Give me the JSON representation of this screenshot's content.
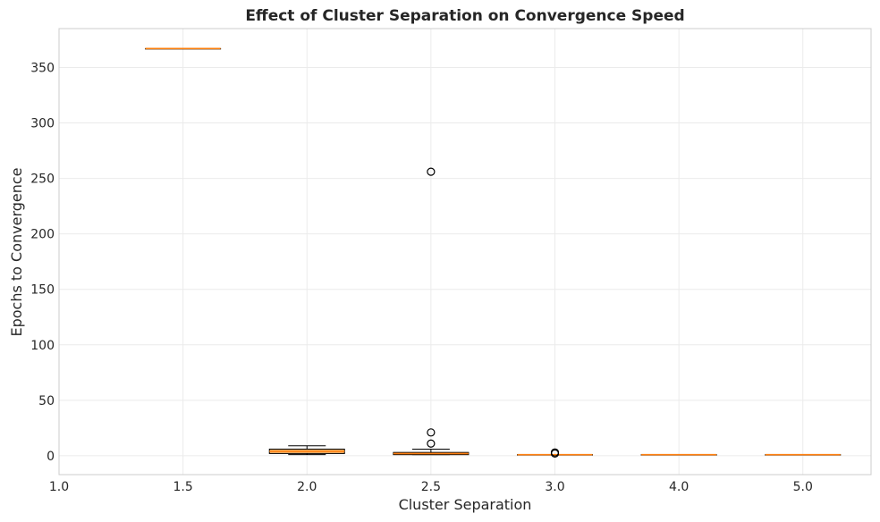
{
  "chart_data": {
    "type": "box",
    "title": "Effect of Cluster Separation on Convergence Speed",
    "xlabel": "Cluster Separation",
    "ylabel": "Epochs to Convergence",
    "x_tick_labels": [
      "1.0",
      "1.5",
      "2.0",
      "2.5",
      "3.0",
      "4.0",
      "5.0"
    ],
    "y_ticks": [
      0,
      50,
      100,
      150,
      200,
      250,
      300,
      350
    ],
    "ylim": [
      -17,
      385
    ],
    "grid": true,
    "colors": {
      "box_fill": "#f5a54a",
      "median": "#ff7f0e",
      "whisker": "#000000",
      "outlier": "#000000"
    },
    "boxes": [
      {
        "label": "1.5",
        "whisker_low": 367,
        "q1": 367,
        "median": 367,
        "q3": 367,
        "whisker_high": 367,
        "outliers": []
      },
      {
        "label": "2.0",
        "whisker_low": 1,
        "q1": 2,
        "median": 4,
        "q3": 6,
        "whisker_high": 9,
        "outliers": []
      },
      {
        "label": "2.5",
        "whisker_low": 1,
        "q1": 1,
        "median": 2,
        "q3": 3,
        "whisker_high": 6,
        "outliers": [
          11,
          21,
          256
        ]
      },
      {
        "label": "3.0",
        "whisker_low": 1,
        "q1": 1,
        "median": 1,
        "q3": 1,
        "whisker_high": 1,
        "outliers": [
          2,
          3
        ]
      },
      {
        "label": "4.0",
        "whisker_low": 1,
        "q1": 1,
        "median": 1,
        "q3": 1,
        "whisker_high": 1,
        "outliers": []
      },
      {
        "label": "5.0",
        "whisker_low": 1,
        "q1": 1,
        "median": 1,
        "q3": 1,
        "whisker_high": 1,
        "outliers": []
      }
    ]
  }
}
